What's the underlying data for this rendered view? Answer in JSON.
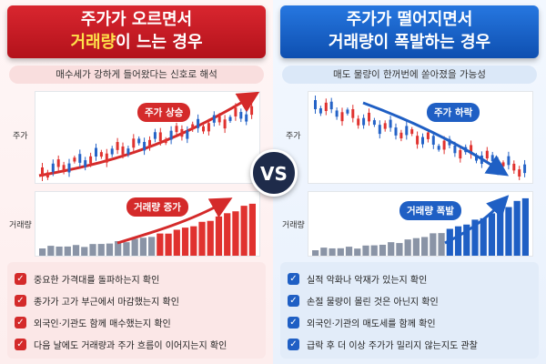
{
  "vs_label": "VS",
  "left": {
    "title_line1": "주가가 오르면서",
    "title_highlight": "거래량",
    "title_rest": "이 느는 경우",
    "subtitle": "매수세가 강하게 들어왔다는 신호로 해석",
    "price_axis_label": "주가",
    "volume_axis_label": "거래량",
    "price_tag": "주가 상승",
    "volume_tag": "거래량 증가",
    "checklist": [
      "중요한 가격대를 돌파하는지 확인",
      "종가가 고가 부근에서 마감했는지 확인",
      "외국인·기관도 함께 매수했는지 확인",
      "다음 날에도 거래량과 주가 흐름이 이어지는지 확인"
    ],
    "colors": {
      "accent": "#d42a2a",
      "up": "#e0322f",
      "down": "#2563c7",
      "volume": "#8a94a6"
    }
  },
  "right": {
    "title_line1": "주가가 떨어지면서",
    "title_highlight": "거래량",
    "title_rest": "이 폭발하는 경우",
    "subtitle": "매도 물량이 한꺼번에 쏟아졌을 가능성",
    "price_axis_label": "주가",
    "volume_axis_label": "거래량",
    "price_tag": "주가 하락",
    "volume_tag": "거래량 폭발",
    "checklist": [
      "실적 악화나 악재가 있는지 확인",
      "손절 물량이 몰린 것은 아닌지 확인",
      "외국인·기관의 매도세를 함께 확인",
      "급락 후 더 이상 주가가 밀리지 않는지도 관찰"
    ],
    "colors": {
      "accent": "#1f5fc4",
      "up": "#e0322f",
      "down": "#2563c7",
      "volume": "#8a94a6"
    }
  }
}
